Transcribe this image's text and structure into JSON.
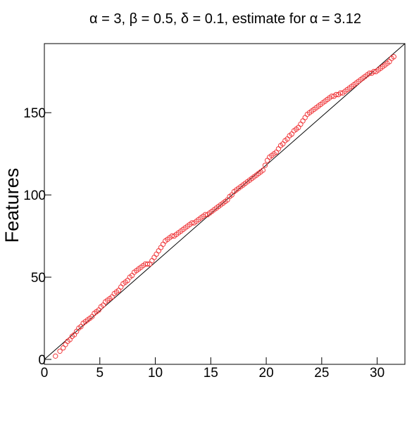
{
  "chart_data": {
    "type": "scatter",
    "title": "α = 3, β = 0.5, δ = 0.1, estimate for α = 3.12",
    "xlabel": "",
    "ylabel": "Features",
    "xlim": [
      0,
      32.5
    ],
    "ylim": [
      -3,
      192
    ],
    "xticks": [
      0,
      5,
      10,
      15,
      20,
      25,
      30
    ],
    "yticks": [
      0,
      50,
      100,
      150
    ],
    "grid": false,
    "legend": "none",
    "colors": {
      "points": "#f0393c",
      "line": "#000000",
      "axis": "#000000"
    },
    "series": [
      {
        "kind": "points",
        "x": [
          1.0,
          1.4,
          1.7,
          1.9,
          2.1,
          2.3,
          2.5,
          2.7,
          2.9,
          3.1,
          3.3,
          3.5,
          3.7,
          3.9,
          4.1,
          4.3,
          4.5,
          4.7,
          4.9,
          5.1,
          5.3,
          5.5,
          5.7,
          5.9,
          6.1,
          6.3,
          6.5,
          6.7,
          6.9,
          7.1,
          7.3,
          7.5,
          7.7,
          7.9,
          8.1,
          8.3,
          8.5,
          8.7,
          8.9,
          9.1,
          9.3,
          9.5,
          9.7,
          9.9,
          10.1,
          10.3,
          10.5,
          10.7,
          10.9,
          11.1,
          11.3,
          11.5,
          11.7,
          11.9,
          12.1,
          12.3,
          12.5,
          12.7,
          12.9,
          13.1,
          13.3,
          13.5,
          13.7,
          13.9,
          14.1,
          14.3,
          14.5,
          14.7,
          14.9,
          15.1,
          15.3,
          15.5,
          15.7,
          15.9,
          16.1,
          16.3,
          16.5,
          16.7,
          16.9,
          17.1,
          17.3,
          17.5,
          17.7,
          17.9,
          18.1,
          18.3,
          18.5,
          18.7,
          18.9,
          19.1,
          19.3,
          19.5,
          19.7,
          19.9,
          20.1,
          20.3,
          20.5,
          20.7,
          20.9,
          21.1,
          21.3,
          21.5,
          21.7,
          21.9,
          22.1,
          22.3,
          22.5,
          22.7,
          22.9,
          23.1,
          23.3,
          23.5,
          23.7,
          23.9,
          24.1,
          24.3,
          24.5,
          24.7,
          24.9,
          25.1,
          25.3,
          25.5,
          25.7,
          25.9,
          26.1,
          26.3,
          26.5,
          26.7,
          26.9,
          27.1,
          27.3,
          27.5,
          27.7,
          27.9,
          28.1,
          28.3,
          28.5,
          28.7,
          28.9,
          29.1,
          29.3,
          29.5,
          29.7,
          29.9,
          30.1,
          30.3,
          30.5,
          30.7,
          30.9,
          31.1,
          31.3,
          31.5
        ],
        "y": [
          2,
          5,
          7,
          9,
          11,
          12,
          14,
          15,
          17,
          19,
          20,
          22,
          23,
          24,
          25,
          26,
          28,
          29,
          30,
          32,
          33,
          35,
          36,
          37,
          38,
          40,
          41,
          42,
          44,
          46,
          47,
          48,
          50,
          51,
          53,
          54,
          55,
          56,
          57,
          58,
          58,
          58,
          60,
          62,
          64,
          66,
          68,
          70,
          72,
          73,
          74,
          75,
          75,
          76,
          77,
          78,
          79,
          80,
          81,
          82,
          83,
          83,
          84,
          85,
          86,
          87,
          88,
          88,
          89,
          90,
          91,
          92,
          93,
          94,
          95,
          96,
          97,
          99,
          100,
          102,
          103,
          104,
          105,
          106,
          107,
          108,
          109,
          110,
          111,
          112,
          113,
          114,
          115,
          118,
          121,
          123,
          124,
          125,
          126,
          128,
          130,
          131,
          133,
          134,
          136,
          137,
          139,
          140,
          141,
          143,
          145,
          147,
          149,
          150,
          151,
          152,
          153,
          154,
          155,
          156,
          157,
          158,
          159,
          160,
          160,
          161,
          161,
          162,
          162,
          163,
          164,
          165,
          166,
          167,
          168,
          169,
          170,
          171,
          172,
          173,
          174,
          174,
          175,
          175,
          176,
          177,
          178,
          179,
          180,
          181,
          183,
          184
        ]
      },
      {
        "kind": "line",
        "x": [
          0,
          32.5
        ],
        "y": [
          0,
          192
        ]
      }
    ]
  }
}
